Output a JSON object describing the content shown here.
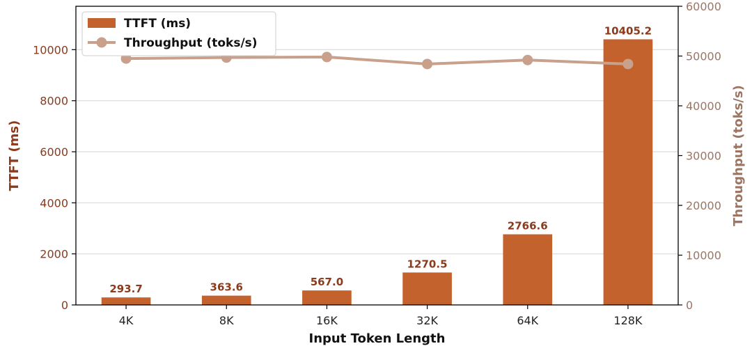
{
  "chart_data": {
    "type": "bar+line",
    "categories": [
      "4K",
      "8K",
      "16K",
      "32K",
      "64K",
      "128K"
    ],
    "xlabel": "Input Token Length",
    "series": [
      {
        "name": "TTFT (ms)",
        "kind": "bar",
        "axis": "left",
        "values": [
          293.7,
          363.6,
          567.0,
          1270.5,
          2766.6,
          10405.2
        ],
        "labels": [
          "293.7",
          "363.6",
          "567.0",
          "1270.5",
          "2766.6",
          "10405.2"
        ]
      },
      {
        "name": "Throughput (toks/s)",
        "kind": "line",
        "axis": "right",
        "values": [
          49500,
          49700,
          49800,
          48400,
          49200,
          48400
        ]
      }
    ],
    "y_left": {
      "label": "TTFT (ms)",
      "ylim": [
        0,
        11700
      ],
      "ticks": [
        0,
        2000,
        4000,
        6000,
        8000,
        10000
      ],
      "tick_labels": [
        "0",
        "2000",
        "4000",
        "6000",
        "8000",
        "10000"
      ]
    },
    "y_right": {
      "label": "Throughput (toks/s)",
      "ylim": [
        0,
        60000
      ],
      "ticks": [
        0,
        10000,
        20000,
        30000,
        40000,
        50000,
        60000
      ],
      "tick_labels": [
        "0",
        "10000",
        "20000",
        "30000",
        "40000",
        "50000",
        "60000"
      ]
    },
    "grid": true,
    "legend_position": "top-left",
    "colors": {
      "bar": "#c4622d",
      "line": "#c9a08c",
      "left_axis": "#8b3a1c",
      "right_axis": "#9c7563",
      "bar_label": "#8b3a1c",
      "grid": "#d9d9d9"
    }
  }
}
